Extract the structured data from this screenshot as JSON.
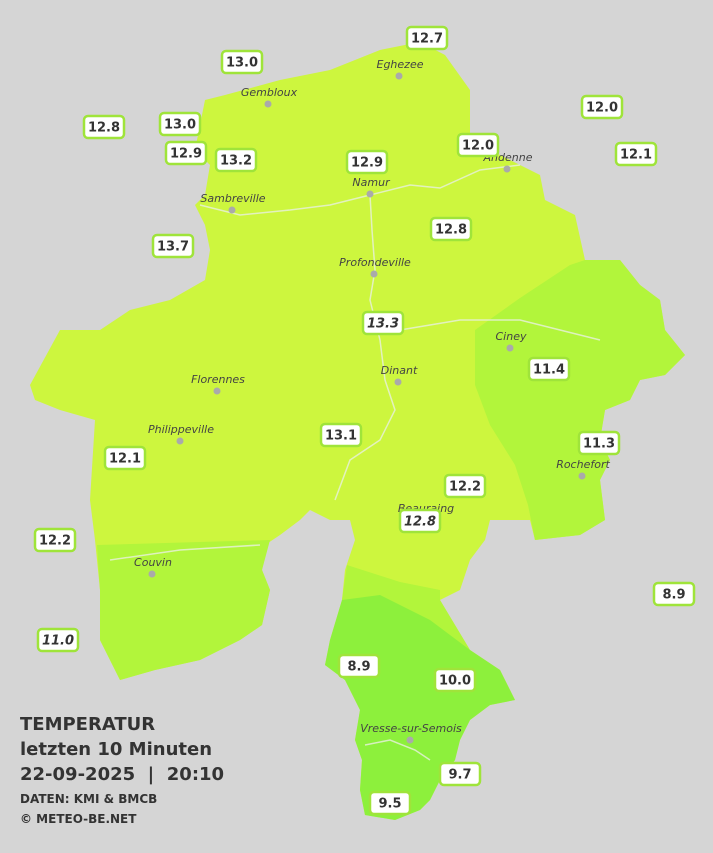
{
  "title": {
    "heading": "TEMPERATUR",
    "subtitle": "letzten 10 Minuten",
    "datetime": "22-09-2025  |  20:10",
    "source": "DATEN: KMI & BMCB",
    "copyright": "© METEO-BE.NET"
  },
  "stations": [
    "12.7",
    "13.0",
    "12.0",
    "12.8",
    "13.0",
    "12.0",
    "12.1",
    "12.9",
    "13.2",
    "12.9",
    "12.8",
    "13.7",
    "13.3",
    "11.4",
    "13.1",
    "11.3",
    "12.1",
    "12.2",
    "12.8",
    "12.2",
    "8.9",
    "11.0",
    "8.9",
    "10.0",
    "9.7",
    "9.5"
  ],
  "cities": [
    "Eghezee",
    "Gembloux",
    "Andenne",
    "Namur",
    "Sambreville",
    "Profondeville",
    "Ciney",
    "Dinant",
    "Florennes",
    "Philippeville",
    "Rochefort",
    "Beauraing",
    "Couvin",
    "Vresse-sur-Semois"
  ]
}
